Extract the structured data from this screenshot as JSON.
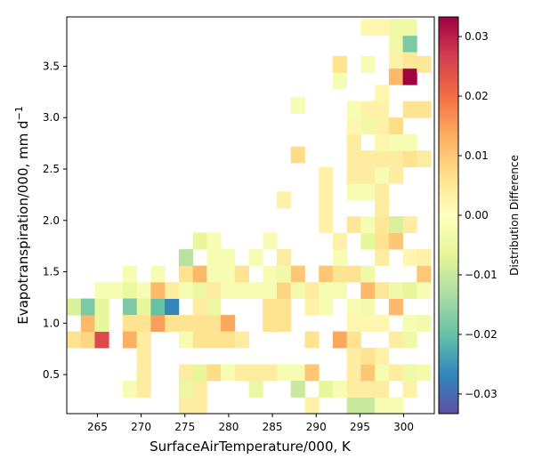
{
  "chart_data": {
    "type": "heatmap",
    "xlabel": "SurfaceAirTemperature/000,  K",
    "ylabel": "Evapotranspiration/000,  mm d",
    "ylabel_exponent": "−1",
    "colorbar_label": "Distribution Difference",
    "xlim": [
      261.5,
      303.5
    ],
    "ylim": [
      0.12,
      3.98
    ],
    "x_ticks": [
      265,
      270,
      275,
      280,
      285,
      290,
      295,
      300
    ],
    "x_tick_labels": [
      "265",
      "270",
      "275",
      "280",
      "285",
      "290",
      "295",
      "300"
    ],
    "y_ticks": [
      0.5,
      1.0,
      1.5,
      2.0,
      2.5,
      3.0,
      3.5
    ],
    "y_tick_labels": [
      "0.5",
      "1.0",
      "1.5",
      "2.0",
      "2.5",
      "3.0",
      "3.5"
    ],
    "colorbar_ticks": [
      -0.03,
      -0.02,
      -0.01,
      0.0,
      0.01,
      0.02,
      0.03
    ],
    "colorbar_tick_labels": [
      "−0.03",
      "−0.02",
      "−0.01",
      "0.00",
      "0.01",
      "0.02",
      "0.03"
    ],
    "clim": [
      -0.0333,
      0.0333
    ],
    "colormap": "Spectral_r",
    "cell_width": 1.6,
    "cell_height": 0.16,
    "cells": [
      {
        "x": 262.3,
        "y": 0.84,
        "v": 0.006
      },
      {
        "x": 263.9,
        "y": 0.84,
        "v": 0.008
      },
      {
        "x": 265.5,
        "y": 0.84,
        "v": 0.025
      },
      {
        "x": 263.9,
        "y": 1.0,
        "v": 0.012
      },
      {
        "x": 265.5,
        "y": 1.0,
        "v": -0.006
      },
      {
        "x": 262.3,
        "y": 1.16,
        "v": -0.008
      },
      {
        "x": 263.9,
        "y": 1.16,
        "v": -0.018
      },
      {
        "x": 265.5,
        "y": 1.16,
        "v": -0.006
      },
      {
        "x": 265.5,
        "y": 1.32,
        "v": -0.002
      },
      {
        "x": 267.1,
        "y": 1.32,
        "v": -0.002
      },
      {
        "x": 268.7,
        "y": 1.32,
        "v": -0.005
      },
      {
        "x": 270.3,
        "y": 1.32,
        "v": -0.002
      },
      {
        "x": 268.7,
        "y": 1.48,
        "v": -0.002
      },
      {
        "x": 268.7,
        "y": 1.16,
        "v": -0.018
      },
      {
        "x": 270.3,
        "y": 1.16,
        "v": -0.006
      },
      {
        "x": 268.7,
        "y": 1.0,
        "v": 0.006
      },
      {
        "x": 268.7,
        "y": 0.84,
        "v": 0.013
      },
      {
        "x": 270.3,
        "y": 0.84,
        "v": 0.004
      },
      {
        "x": 270.3,
        "y": 0.68,
        "v": 0.004
      },
      {
        "x": 270.3,
        "y": 0.52,
        "v": 0.004
      },
      {
        "x": 268.7,
        "y": 0.36,
        "v": -0.002
      },
      {
        "x": 270.3,
        "y": 0.36,
        "v": 0.004
      },
      {
        "x": 270.3,
        "y": 1.0,
        "v": 0.006
      },
      {
        "x": 271.9,
        "y": 1.0,
        "v": 0.015
      },
      {
        "x": 271.9,
        "y": 1.16,
        "v": -0.02
      },
      {
        "x": 271.9,
        "y": 1.32,
        "v": 0.012
      },
      {
        "x": 271.9,
        "y": 1.48,
        "v": -0.002
      },
      {
        "x": 273.5,
        "y": 1.16,
        "v": -0.027
      },
      {
        "x": 273.5,
        "y": 1.32,
        "v": 0.004
      },
      {
        "x": 273.5,
        "y": 1.0,
        "v": 0.006
      },
      {
        "x": 275.1,
        "y": 1.0,
        "v": 0.006
      },
      {
        "x": 276.7,
        "y": 1.0,
        "v": 0.006
      },
      {
        "x": 278.3,
        "y": 1.0,
        "v": 0.006
      },
      {
        "x": 279.9,
        "y": 1.0,
        "v": 0.014
      },
      {
        "x": 275.1,
        "y": 1.32,
        "v": -0.002
      },
      {
        "x": 275.1,
        "y": 1.48,
        "v": 0.006
      },
      {
        "x": 275.1,
        "y": 1.64,
        "v": -0.012
      },
      {
        "x": 275.1,
        "y": 0.84,
        "v": -0.002
      },
      {
        "x": 275.1,
        "y": 0.52,
        "v": 0.004
      },
      {
        "x": 275.1,
        "y": 0.36,
        "v": -0.005
      },
      {
        "x": 275.1,
        "y": 0.2,
        "v": 0.004
      },
      {
        "x": 276.7,
        "y": 0.2,
        "v": 0.004
      },
      {
        "x": 276.7,
        "y": 0.36,
        "v": 0.004
      },
      {
        "x": 276.7,
        "y": 0.52,
        "v": -0.006
      },
      {
        "x": 276.7,
        "y": 0.84,
        "v": 0.006
      },
      {
        "x": 276.7,
        "y": 1.16,
        "v": 0.004
      },
      {
        "x": 276.7,
        "y": 1.32,
        "v": -0.005
      },
      {
        "x": 276.7,
        "y": 1.48,
        "v": 0.012
      },
      {
        "x": 276.7,
        "y": 1.8,
        "v": -0.006
      },
      {
        "x": 278.3,
        "y": 1.8,
        "v": -0.002
      },
      {
        "x": 278.3,
        "y": 1.64,
        "v": -0.002
      },
      {
        "x": 278.3,
        "y": 1.48,
        "v": -0.002
      },
      {
        "x": 278.3,
        "y": 1.32,
        "v": 0.004
      },
      {
        "x": 278.3,
        "y": 1.16,
        "v": -0.005
      },
      {
        "x": 278.3,
        "y": 0.84,
        "v": 0.006
      },
      {
        "x": 278.3,
        "y": 0.52,
        "v": 0.007
      },
      {
        "x": 279.9,
        "y": 0.84,
        "v": 0.006
      },
      {
        "x": 279.9,
        "y": 0.52,
        "v": -0.002
      },
      {
        "x": 279.9,
        "y": 1.64,
        "v": -0.002
      },
      {
        "x": 279.9,
        "y": 1.48,
        "v": -0.002
      },
      {
        "x": 279.9,
        "y": 1.32,
        "v": -0.002
      },
      {
        "x": 281.5,
        "y": 0.52,
        "v": 0.004
      },
      {
        "x": 281.5,
        "y": 0.84,
        "v": 0.004
      },
      {
        "x": 281.5,
        "y": 1.32,
        "v": -0.002
      },
      {
        "x": 281.5,
        "y": 1.48,
        "v": 0.006
      },
      {
        "x": 283.1,
        "y": 0.36,
        "v": -0.005
      },
      {
        "x": 283.1,
        "y": 0.52,
        "v": 0.004
      },
      {
        "x": 283.1,
        "y": 1.32,
        "v": -0.002
      },
      {
        "x": 283.1,
        "y": 1.64,
        "v": -0.002
      },
      {
        "x": 284.7,
        "y": 0.52,
        "v": 0.004
      },
      {
        "x": 284.7,
        "y": 1.0,
        "v": 0.006
      },
      {
        "x": 284.7,
        "y": 1.16,
        "v": 0.006
      },
      {
        "x": 284.7,
        "y": 1.32,
        "v": -0.002
      },
      {
        "x": 284.7,
        "y": 1.48,
        "v": -0.002
      },
      {
        "x": 284.7,
        "y": 1.8,
        "v": -0.002
      },
      {
        "x": 286.3,
        "y": 0.52,
        "v": -0.002
      },
      {
        "x": 286.3,
        "y": 1.0,
        "v": 0.006
      },
      {
        "x": 286.3,
        "y": 1.16,
        "v": 0.006
      },
      {
        "x": 286.3,
        "y": 1.32,
        "v": 0.008
      },
      {
        "x": 286.3,
        "y": 1.48,
        "v": -0.004
      },
      {
        "x": 286.3,
        "y": 1.64,
        "v": 0.004
      },
      {
        "x": 286.3,
        "y": 2.2,
        "v": 0.003
      },
      {
        "x": 287.9,
        "y": 0.52,
        "v": -0.002
      },
      {
        "x": 287.9,
        "y": 0.36,
        "v": -0.01
      },
      {
        "x": 287.9,
        "y": 1.48,
        "v": 0.01
      },
      {
        "x": 287.9,
        "y": 1.32,
        "v": -0.003
      },
      {
        "x": 287.9,
        "y": 2.64,
        "v": 0.007
      },
      {
        "x": 287.9,
        "y": 3.12,
        "v": -0.002
      },
      {
        "x": 289.5,
        "y": 0.2,
        "v": 0.003
      },
      {
        "x": 289.5,
        "y": 0.52,
        "v": 0.01
      },
      {
        "x": 289.5,
        "y": 0.84,
        "v": 0.006
      },
      {
        "x": 289.5,
        "y": 1.32,
        "v": 0.004
      },
      {
        "x": 289.5,
        "y": 1.16,
        "v": 0.003
      },
      {
        "x": 291.1,
        "y": 0.36,
        "v": -0.006
      },
      {
        "x": 291.1,
        "y": 1.48,
        "v": 0.01
      },
      {
        "x": 291.1,
        "y": 1.32,
        "v": -0.002
      },
      {
        "x": 291.1,
        "y": 1.16,
        "v": -0.002
      },
      {
        "x": 291.1,
        "y": 1.96,
        "v": 0.003
      },
      {
        "x": 291.1,
        "y": 2.12,
        "v": 0.003
      },
      {
        "x": 291.1,
        "y": 2.28,
        "v": 0.003
      },
      {
        "x": 291.1,
        "y": 2.44,
        "v": 0.003
      },
      {
        "x": 292.7,
        "y": 0.36,
        "v": -0.002
      },
      {
        "x": 292.7,
        "y": 0.84,
        "v": 0.014
      },
      {
        "x": 292.7,
        "y": 1.32,
        "v": -0.002
      },
      {
        "x": 292.7,
        "y": 1.48,
        "v": 0.006
      },
      {
        "x": 292.7,
        "y": 1.64,
        "v": -0.002
      },
      {
        "x": 292.7,
        "y": 1.8,
        "v": 0.003
      },
      {
        "x": 292.7,
        "y": 3.36,
        "v": -0.002
      },
      {
        "x": 292.7,
        "y": 3.52,
        "v": 0.006
      },
      {
        "x": 294.3,
        "y": 0.2,
        "v": -0.01
      },
      {
        "x": 294.3,
        "y": 0.36,
        "v": 0.004
      },
      {
        "x": 294.3,
        "y": 0.52,
        "v": 0.004
      },
      {
        "x": 294.3,
        "y": 0.68,
        "v": 0.004
      },
      {
        "x": 294.3,
        "y": 0.84,
        "v": 0.006
      },
      {
        "x": 294.3,
        "y": 1.0,
        "v": 0.002
      },
      {
        "x": 294.3,
        "y": 1.16,
        "v": -0.002
      },
      {
        "x": 294.3,
        "y": 1.48,
        "v": 0.006
      },
      {
        "x": 294.3,
        "y": 1.96,
        "v": 0.005
      },
      {
        "x": 294.3,
        "y": 2.28,
        "v": -0.002
      },
      {
        "x": 294.3,
        "y": 2.44,
        "v": 0.004
      },
      {
        "x": 294.3,
        "y": 2.6,
        "v": 0.004
      },
      {
        "x": 294.3,
        "y": 2.76,
        "v": 0.004
      },
      {
        "x": 294.3,
        "y": 2.92,
        "v": 0.002
      },
      {
        "x": 294.3,
        "y": 3.08,
        "v": -0.002
      },
      {
        "x": 295.9,
        "y": 0.2,
        "v": -0.01
      },
      {
        "x": 295.9,
        "y": 0.36,
        "v": 0.004
      },
      {
        "x": 295.9,
        "y": 0.52,
        "v": 0.01
      },
      {
        "x": 295.9,
        "y": 0.68,
        "v": 0.006
      },
      {
        "x": 295.9,
        "y": 1.0,
        "v": 0.002
      },
      {
        "x": 295.9,
        "y": 1.16,
        "v": -0.003
      },
      {
        "x": 295.9,
        "y": 1.32,
        "v": 0.012
      },
      {
        "x": 295.9,
        "y": 1.48,
        "v": -0.004
      },
      {
        "x": 295.9,
        "y": 1.8,
        "v": -0.006
      },
      {
        "x": 295.9,
        "y": 1.96,
        "v": -0.002
      },
      {
        "x": 295.9,
        "y": 2.28,
        "v": -0.002
      },
      {
        "x": 295.9,
        "y": 2.44,
        "v": 0.004
      },
      {
        "x": 295.9,
        "y": 2.6,
        "v": 0.004
      },
      {
        "x": 295.9,
        "y": 2.92,
        "v": -0.004
      },
      {
        "x": 295.9,
        "y": 3.08,
        "v": 0.003
      },
      {
        "x": 295.9,
        "y": 3.52,
        "v": -0.002
      },
      {
        "x": 295.9,
        "y": 3.88,
        "v": 0.002
      },
      {
        "x": 297.5,
        "y": 0.2,
        "v": -0.002
      },
      {
        "x": 297.5,
        "y": 0.36,
        "v": 0.004
      },
      {
        "x": 297.5,
        "y": 0.52,
        "v": -0.002
      },
      {
        "x": 297.5,
        "y": 0.68,
        "v": 0.003
      },
      {
        "x": 297.5,
        "y": 1.0,
        "v": 0.002
      },
      {
        "x": 297.5,
        "y": 1.32,
        "v": 0.005
      },
      {
        "x": 297.5,
        "y": 1.64,
        "v": 0.004
      },
      {
        "x": 297.5,
        "y": 1.8,
        "v": 0.006
      },
      {
        "x": 297.5,
        "y": 1.96,
        "v": 0.005
      },
      {
        "x": 297.5,
        "y": 2.12,
        "v": 0.004
      },
      {
        "x": 297.5,
        "y": 2.28,
        "v": 0.004
      },
      {
        "x": 297.5,
        "y": 2.44,
        "v": -0.002
      },
      {
        "x": 297.5,
        "y": 2.6,
        "v": 0.004
      },
      {
        "x": 297.5,
        "y": 2.76,
        "v": 0.002
      },
      {
        "x": 297.5,
        "y": 2.92,
        "v": 0.003
      },
      {
        "x": 297.5,
        "y": 3.08,
        "v": 0.003
      },
      {
        "x": 297.5,
        "y": 3.24,
        "v": 0.002
      },
      {
        "x": 297.5,
        "y": 3.88,
        "v": 0.002
      },
      {
        "x": 299.1,
        "y": 0.2,
        "v": -0.002
      },
      {
        "x": 299.1,
        "y": 0.52,
        "v": 0.004
      },
      {
        "x": 299.1,
        "y": 0.84,
        "v": 0.004
      },
      {
        "x": 299.1,
        "y": 1.16,
        "v": 0.012
      },
      {
        "x": 299.1,
        "y": 1.32,
        "v": -0.004
      },
      {
        "x": 299.1,
        "y": 1.8,
        "v": 0.01
      },
      {
        "x": 299.1,
        "y": 1.96,
        "v": -0.008
      },
      {
        "x": 299.1,
        "y": 2.44,
        "v": 0.004
      },
      {
        "x": 299.1,
        "y": 2.6,
        "v": 0.004
      },
      {
        "x": 299.1,
        "y": 2.76,
        "v": -0.002
      },
      {
        "x": 299.1,
        "y": 2.92,
        "v": 0.007
      },
      {
        "x": 299.1,
        "y": 3.4,
        "v": 0.012
      },
      {
        "x": 299.1,
        "y": 3.56,
        "v": 0.003
      },
      {
        "x": 299.1,
        "y": 3.72,
        "v": -0.004
      },
      {
        "x": 299.1,
        "y": 3.88,
        "v": -0.004
      },
      {
        "x": 300.7,
        "y": 0.36,
        "v": 0.003
      },
      {
        "x": 300.7,
        "y": 0.52,
        "v": -0.004
      },
      {
        "x": 300.7,
        "y": 0.84,
        "v": -0.004
      },
      {
        "x": 300.7,
        "y": 1.0,
        "v": -0.002
      },
      {
        "x": 300.7,
        "y": 1.32,
        "v": -0.006
      },
      {
        "x": 300.7,
        "y": 1.64,
        "v": 0.002
      },
      {
        "x": 300.7,
        "y": 1.96,
        "v": 0.004
      },
      {
        "x": 300.7,
        "y": 2.6,
        "v": 0.006
      },
      {
        "x": 300.7,
        "y": 2.76,
        "v": -0.002
      },
      {
        "x": 300.7,
        "y": 3.08,
        "v": 0.006
      },
      {
        "x": 300.7,
        "y": 3.4,
        "v": 0.033
      },
      {
        "x": 300.7,
        "y": 3.56,
        "v": 0.005
      },
      {
        "x": 300.7,
        "y": 3.72,
        "v": -0.018
      },
      {
        "x": 300.7,
        "y": 3.88,
        "v": -0.004
      },
      {
        "x": 302.3,
        "y": 0.52,
        "v": -0.003
      },
      {
        "x": 302.3,
        "y": 1.0,
        "v": -0.003
      },
      {
        "x": 302.3,
        "y": 1.32,
        "v": -0.002
      },
      {
        "x": 302.3,
        "y": 1.48,
        "v": 0.01
      },
      {
        "x": 302.3,
        "y": 1.64,
        "v": 0.003
      },
      {
        "x": 302.3,
        "y": 2.6,
        "v": 0.004
      },
      {
        "x": 302.3,
        "y": 3.08,
        "v": 0.006
      },
      {
        "x": 302.3,
        "y": 3.52,
        "v": 0.005
      }
    ]
  }
}
